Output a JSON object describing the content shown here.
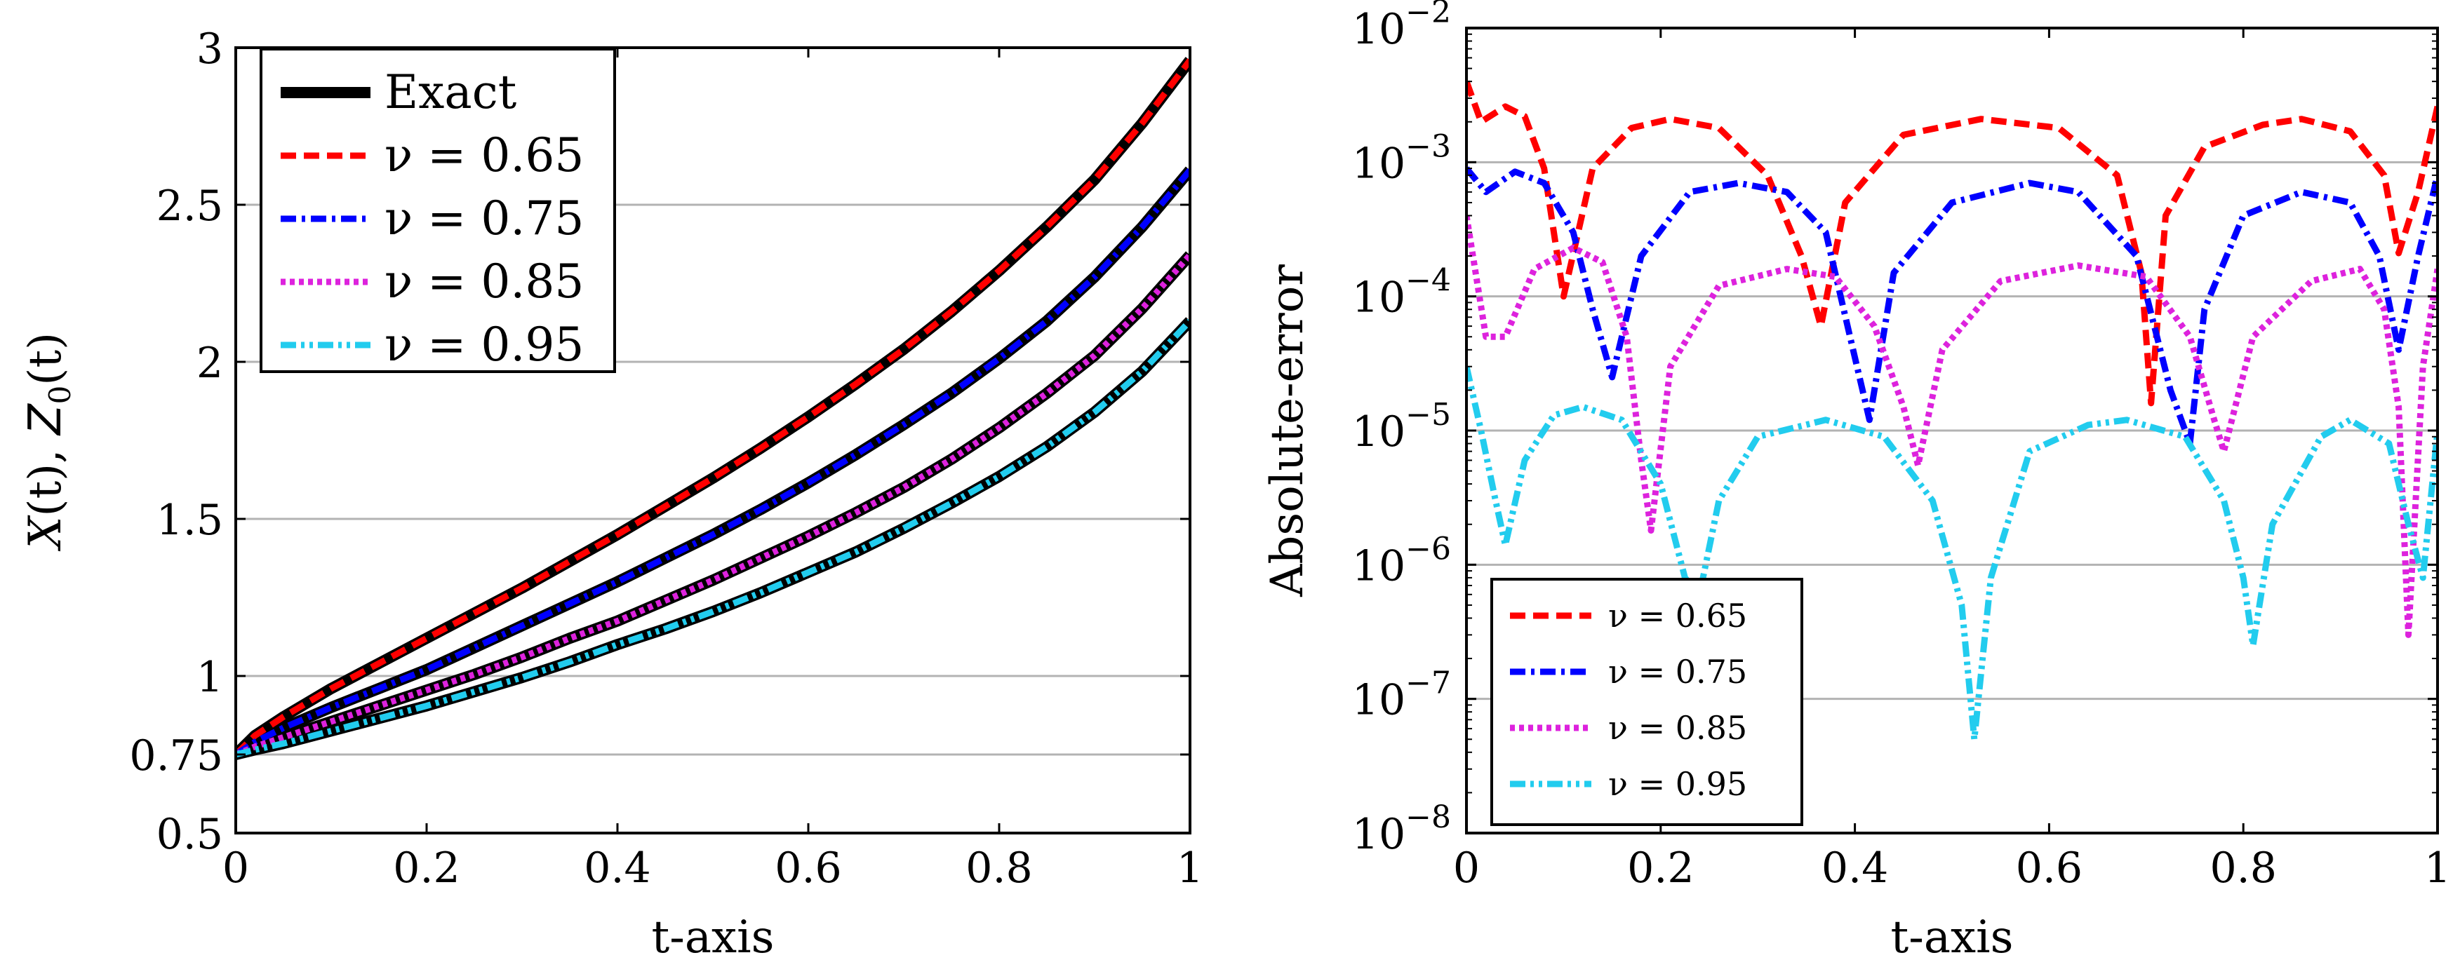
{
  "chart_data": [
    {
      "type": "line",
      "title": "",
      "xlabel": "t-axis",
      "ylabel": "X(t), Z0(t)",
      "ylabel_parts": {
        "x_var": "X",
        "z_var": "Z",
        "z_sub": "0",
        "arg": "(t)",
        "sep": ", "
      },
      "xlim": [
        0,
        1
      ],
      "ylim": [
        0.5,
        3
      ],
      "yscale": "linear",
      "grid": "horizontal",
      "legend_position": "top-left",
      "xticks": [
        0,
        0.2,
        0.4,
        0.6,
        0.8,
        1
      ],
      "xtick_labels": [
        "0",
        "0.2",
        "0.4",
        "0.6",
        "0.8",
        "1"
      ],
      "yticks": [
        0.5,
        0.75,
        1,
        1.5,
        2,
        2.5,
        3
      ],
      "ytick_labels": [
        "0.5",
        "0.75",
        "1",
        "1.5",
        "2",
        "2.5",
        "3"
      ],
      "x": [
        0,
        0.02,
        0.05,
        0.1,
        0.15,
        0.2,
        0.25,
        0.3,
        0.35,
        0.4,
        0.45,
        0.5,
        0.55,
        0.6,
        0.65,
        0.7,
        0.75,
        0.8,
        0.85,
        0.9,
        0.95,
        1.0
      ],
      "series": [
        {
          "name": "Exact 0.65",
          "legend": "Exact",
          "role": "exact",
          "color": "#000000",
          "values": [
            0.75,
            0.81,
            0.87,
            0.96,
            1.04,
            1.12,
            1.2,
            1.28,
            1.365,
            1.45,
            1.54,
            1.63,
            1.725,
            1.825,
            1.93,
            2.04,
            2.16,
            2.29,
            2.43,
            2.58,
            2.76,
            2.96
          ]
        },
        {
          "name": "Exact 0.75",
          "legend": "",
          "role": "exact",
          "color": "#000000",
          "values": [
            0.75,
            0.79,
            0.835,
            0.9,
            0.96,
            1.02,
            1.09,
            1.16,
            1.23,
            1.3,
            1.375,
            1.45,
            1.53,
            1.615,
            1.705,
            1.8,
            1.9,
            2.01,
            2.13,
            2.27,
            2.43,
            2.61
          ]
        },
        {
          "name": "Exact 0.85",
          "legend": "",
          "role": "exact",
          "color": "#000000",
          "values": [
            0.75,
            0.775,
            0.805,
            0.855,
            0.905,
            0.955,
            1.005,
            1.06,
            1.12,
            1.175,
            1.24,
            1.305,
            1.375,
            1.445,
            1.52,
            1.6,
            1.69,
            1.79,
            1.9,
            2.02,
            2.17,
            2.34
          ]
        },
        {
          "name": "Exact 0.95",
          "legend": "",
          "role": "exact",
          "color": "#000000",
          "values": [
            0.75,
            0.765,
            0.785,
            0.825,
            0.865,
            0.905,
            0.95,
            0.995,
            1.045,
            1.1,
            1.15,
            1.205,
            1.265,
            1.33,
            1.395,
            1.47,
            1.55,
            1.635,
            1.73,
            1.84,
            1.97,
            2.13
          ]
        },
        {
          "name": "ν = 0.65",
          "legend": "ν = 0.65",
          "role": "approx",
          "color": "#ff0000",
          "dash": "22 11",
          "values": [
            0.75,
            0.81,
            0.87,
            0.96,
            1.04,
            1.12,
            1.2,
            1.28,
            1.365,
            1.45,
            1.54,
            1.63,
            1.725,
            1.825,
            1.93,
            2.04,
            2.16,
            2.29,
            2.43,
            2.58,
            2.76,
            2.96
          ]
        },
        {
          "name": "ν = 0.75",
          "legend": "ν = 0.75",
          "role": "approx",
          "color": "#0000ff",
          "dash": "22 8 5 8",
          "values": [
            0.75,
            0.79,
            0.835,
            0.9,
            0.96,
            1.02,
            1.09,
            1.16,
            1.23,
            1.3,
            1.375,
            1.45,
            1.53,
            1.615,
            1.705,
            1.8,
            1.9,
            2.01,
            2.13,
            2.27,
            2.43,
            2.61
          ]
        },
        {
          "name": "ν = 0.85",
          "legend": "ν = 0.85",
          "role": "approx",
          "color": "#dd22dd",
          "dash": "7 6",
          "values": [
            0.75,
            0.775,
            0.805,
            0.855,
            0.905,
            0.955,
            1.005,
            1.06,
            1.12,
            1.175,
            1.24,
            1.305,
            1.375,
            1.445,
            1.52,
            1.6,
            1.69,
            1.79,
            1.9,
            2.02,
            2.17,
            2.34
          ]
        },
        {
          "name": "ν = 0.95",
          "legend": "ν = 0.95",
          "role": "approx",
          "color": "#22ccee",
          "dash": "22 7 5 7 5 7",
          "values": [
            0.75,
            0.765,
            0.785,
            0.825,
            0.865,
            0.905,
            0.95,
            0.995,
            1.045,
            1.1,
            1.15,
            1.205,
            1.265,
            1.33,
            1.395,
            1.47,
            1.55,
            1.635,
            1.73,
            1.84,
            1.97,
            2.13
          ]
        }
      ]
    },
    {
      "type": "line",
      "title": "",
      "xlabel": "t-axis",
      "ylabel": "Absolute-error",
      "xlim": [
        0,
        1
      ],
      "ylim": [
        1e-08,
        0.01
      ],
      "yscale": "log",
      "grid": "horizontal",
      "legend_position": "bottom-left",
      "xticks": [
        0,
        0.2,
        0.4,
        0.6,
        0.8,
        1
      ],
      "xtick_labels": [
        "0",
        "0.2",
        "0.4",
        "0.6",
        "0.8",
        "1"
      ],
      "ytick_exponents": [
        -8,
        -7,
        -6,
        -5,
        -4,
        -3,
        -2
      ],
      "ytick_base": "10",
      "series": [
        {
          "name": "ν = 0.65",
          "color": "#ff0000",
          "dash": "22 11",
          "x": [
            0,
            0.015,
            0.04,
            0.06,
            0.08,
            0.1,
            0.13,
            0.17,
            0.21,
            0.26,
            0.31,
            0.345,
            0.365,
            0.39,
            0.45,
            0.53,
            0.61,
            0.67,
            0.695,
            0.705,
            0.72,
            0.76,
            0.82,
            0.86,
            0.91,
            0.945,
            0.96,
            0.98,
            1.0
          ],
          "values": [
            0.004,
            0.002,
            0.0026,
            0.0022,
            0.0009,
            0.0001,
            0.0009,
            0.0018,
            0.0021,
            0.0018,
            0.0008,
            0.0002,
            6e-05,
            0.0005,
            0.0016,
            0.0021,
            0.0018,
            0.0008,
            0.00015,
            1.6e-05,
            0.0004,
            0.0013,
            0.0019,
            0.0021,
            0.0017,
            0.0008,
            0.00021,
            0.0006,
            0.0026
          ]
        },
        {
          "name": "ν = 0.75",
          "color": "#0000ff",
          "dash": "22 8 5 8",
          "x": [
            0,
            0.02,
            0.05,
            0.08,
            0.11,
            0.13,
            0.15,
            0.18,
            0.23,
            0.28,
            0.33,
            0.37,
            0.395,
            0.415,
            0.44,
            0.5,
            0.58,
            0.63,
            0.69,
            0.725,
            0.745,
            0.76,
            0.8,
            0.86,
            0.91,
            0.94,
            0.96,
            0.98,
            1.0
          ],
          "values": [
            0.0009,
            0.0006,
            0.00085,
            0.0007,
            0.0003,
            8e-05,
            2.5e-05,
            0.0002,
            0.0006,
            0.0007,
            0.0006,
            0.0003,
            5e-05,
            1.2e-05,
            0.00015,
            0.0005,
            0.0007,
            0.0006,
            0.0002,
            2e-05,
            8e-06,
            8e-05,
            0.0004,
            0.0006,
            0.0005,
            0.0002,
            4e-05,
            0.0002,
            0.0008
          ]
        },
        {
          "name": "ν = 0.85",
          "color": "#dd22dd",
          "dash": "7 6",
          "x": [
            0,
            0.02,
            0.04,
            0.07,
            0.11,
            0.14,
            0.165,
            0.18,
            0.19,
            0.21,
            0.26,
            0.33,
            0.38,
            0.42,
            0.45,
            0.465,
            0.49,
            0.55,
            0.63,
            0.7,
            0.745,
            0.77,
            0.78,
            0.81,
            0.87,
            0.92,
            0.945,
            0.96,
            0.97,
            0.985,
            1.0
          ],
          "values": [
            0.0004,
            5e-05,
            5e-05,
            0.00016,
            0.00023,
            0.00018,
            5e-05,
            6e-06,
            1.8e-06,
            3e-05,
            0.00012,
            0.00016,
            0.00014,
            6e-05,
            1.5e-05,
            5.5e-06,
            4e-05,
            0.00013,
            0.00017,
            0.00014,
            5e-05,
            1.2e-05,
            7e-06,
            5e-05,
            0.00013,
            0.00016,
            8e-05,
            1.5e-05,
            3e-07,
            3e-05,
            0.00016
          ]
        },
        {
          "name": "ν = 0.95",
          "color": "#22ccee",
          "dash": "22 7 5 7 5 7",
          "x": [
            0,
            0.015,
            0.03,
            0.04,
            0.06,
            0.09,
            0.12,
            0.16,
            0.2,
            0.225,
            0.24,
            0.26,
            0.3,
            0.37,
            0.43,
            0.48,
            0.51,
            0.523,
            0.54,
            0.58,
            0.64,
            0.68,
            0.74,
            0.78,
            0.8,
            0.81,
            0.83,
            0.88,
            0.91,
            0.95,
            0.97,
            0.985,
            1.0
          ],
          "values": [
            3e-05,
            1e-05,
            3e-06,
            1.4e-06,
            6e-06,
            1.3e-05,
            1.5e-05,
            1.2e-05,
            4e-06,
            8e-07,
            6e-07,
            3e-06,
            9e-06,
            1.2e-05,
            9e-06,
            3e-06,
            5e-07,
            5e-08,
            8e-07,
            7e-06,
            1.1e-05,
            1.2e-05,
            9e-06,
            3e-06,
            8e-07,
            2.5e-07,
            2e-06,
            9e-06,
            1.2e-05,
            8e-06,
            2e-06,
            8e-07,
            1e-05
          ]
        }
      ]
    }
  ]
}
